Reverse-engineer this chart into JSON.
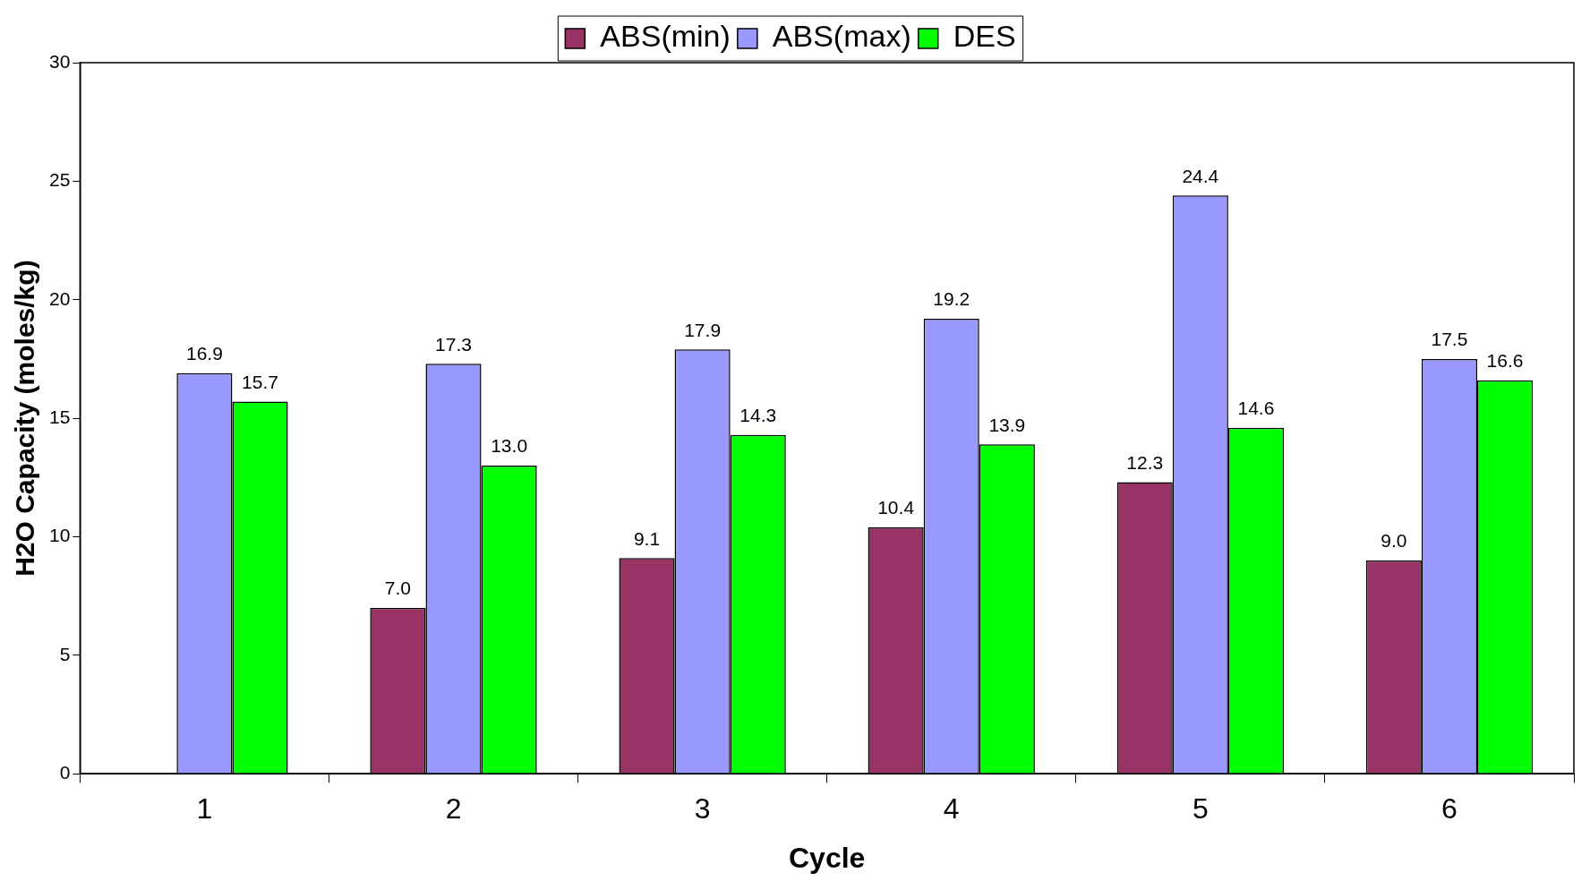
{
  "chart_data": {
    "type": "bar",
    "xlabel": "Cycle",
    "ylabel": "H2O Capacity (moles/kg)",
    "categories": [
      "1",
      "2",
      "3",
      "4",
      "5",
      "6"
    ],
    "series": [
      {
        "name": "ABS(min)",
        "color": "#993366",
        "values": [
          null,
          7.0,
          9.1,
          10.4,
          12.3,
          9.0
        ],
        "value_labels": [
          null,
          "7.0",
          "9.1",
          "10.4",
          "12.3",
          "9.0"
        ]
      },
      {
        "name": "ABS(max)",
        "color": "#9999ff",
        "values": [
          16.9,
          17.3,
          17.9,
          19.2,
          24.4,
          17.5
        ],
        "value_labels": [
          "16.9",
          "17.3",
          "17.9",
          "19.2",
          "24.4",
          "17.5"
        ]
      },
      {
        "name": "DES",
        "color": "#00ff00",
        "values": [
          15.7,
          13.0,
          14.3,
          13.9,
          14.6,
          16.6
        ],
        "value_labels": [
          "15.7",
          "13.0",
          "14.3",
          "13.9",
          "14.6",
          "16.6"
        ]
      }
    ],
    "ylim": [
      0,
      30
    ],
    "yticks": [
      0,
      5,
      10,
      15,
      20,
      25,
      30
    ],
    "grid": false,
    "legend": "top"
  }
}
